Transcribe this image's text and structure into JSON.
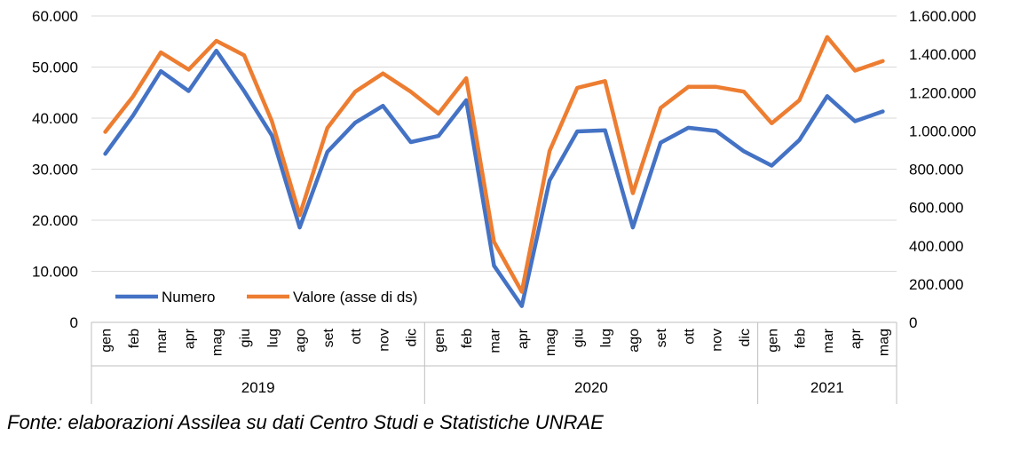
{
  "chart_data": {
    "type": "line",
    "categories": [
      "gen",
      "feb",
      "mar",
      "apr",
      "mag",
      "giu",
      "lug",
      "ago",
      "set",
      "ott",
      "nov",
      "dic",
      "gen",
      "feb",
      "mar",
      "apr",
      "mag",
      "giu",
      "lug",
      "ago",
      "set",
      "ott",
      "nov",
      "dic",
      "gen",
      "feb",
      "mar",
      "apr",
      "mag"
    ],
    "year_groups": [
      {
        "label": "2019",
        "count": 12
      },
      {
        "label": "2020",
        "count": 12
      },
      {
        "label": "2021",
        "count": 5
      }
    ],
    "y_left": {
      "min": 0,
      "max": 60000,
      "step": 10000,
      "tick_labels": [
        "0",
        "10.000",
        "20.000",
        "30.000",
        "40.000",
        "50.000",
        "60.000"
      ]
    },
    "y_right": {
      "min": 0,
      "max": 1600000,
      "step": 200000,
      "tick_labels": [
        "0",
        "200.000",
        "400.000",
        "600.000",
        "800.000",
        "1.000.000",
        "1.200.000",
        "1.400.000",
        "1.600.000"
      ]
    },
    "series": [
      {
        "name": "Numero",
        "axis": "left",
        "color": "#4472C4",
        "values": [
          33000,
          40500,
          49200,
          45300,
          53200,
          45300,
          36600,
          18600,
          33400,
          39100,
          42400,
          35300,
          36500,
          43500,
          11100,
          3200,
          27800,
          37400,
          37600,
          18600,
          35200,
          38100,
          37500,
          33500,
          30700,
          35700,
          44300,
          39400,
          41300
        ]
      },
      {
        "name": "Valore (asse di ds)",
        "axis": "right",
        "color": "#ED7D31",
        "values": [
          995000,
          1180000,
          1410000,
          1320000,
          1470000,
          1395000,
          1050000,
          560000,
          1015000,
          1205000,
          1300000,
          1205000,
          1090000,
          1275000,
          420000,
          160000,
          895000,
          1225000,
          1260000,
          675000,
          1120000,
          1230000,
          1230000,
          1205000,
          1040000,
          1160000,
          1490000,
          1315000,
          1365000
        ]
      }
    ],
    "legend_position": "bottom-left inside plot",
    "grid": "horizontal"
  },
  "source_note": "Fonte: elaborazioni Assilea su dati Centro Studi e Statistiche UNRAE"
}
